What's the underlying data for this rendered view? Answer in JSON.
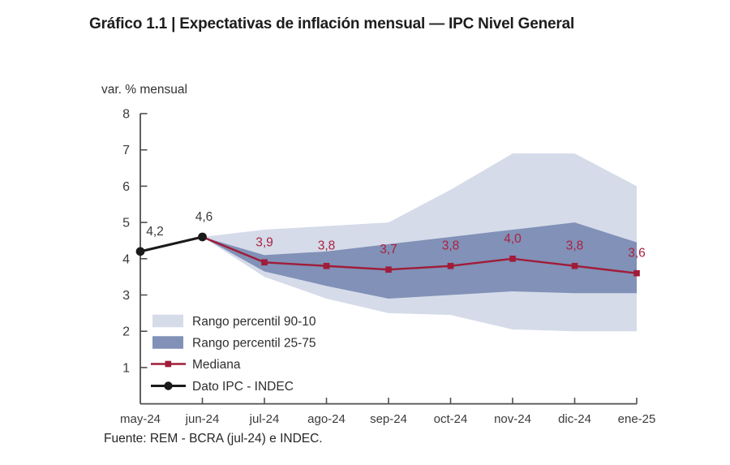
{
  "title": "Gráfico 1.1 | Expectativas de inflación mensual — IPC Nivel General",
  "source": "Fuente: REM - BCRA (jul-24) e INDEC.",
  "axis": {
    "color": "#4f4f4f",
    "tick_label_color": "#3a3a3a"
  },
  "chart_data": {
    "type": "area",
    "title": "Expectativas de inflación mensual — IPC Nivel General",
    "xlabel": "",
    "ylabel": "var. % mensual",
    "x_categories": [
      "may-24",
      "jun-24",
      "jul-24",
      "ago-24",
      "sep-24",
      "oct-24",
      "nov-24",
      "dic-24",
      "ene-25"
    ],
    "ylim": [
      0,
      8
    ],
    "yticks": [
      1,
      2,
      3,
      4,
      5,
      6,
      7,
      8
    ],
    "grid": false,
    "legend_position": "inside-bottom-left",
    "series": [
      {
        "name": "Rango percentil 90-10",
        "type": "band",
        "x_start_index": 1,
        "upper": [
          4.6,
          4.8,
          4.9,
          5.0,
          5.9,
          6.9,
          6.9,
          6.0
        ],
        "lower": [
          4.6,
          3.5,
          2.9,
          2.5,
          2.45,
          2.05,
          2.0,
          2.0
        ],
        "color": "#d5dbe9"
      },
      {
        "name": "Rango percentil 25-75",
        "type": "band",
        "x_start_index": 1,
        "upper": [
          4.6,
          4.1,
          4.2,
          4.4,
          4.6,
          4.8,
          5.0,
          4.45
        ],
        "lower": [
          4.6,
          3.65,
          3.25,
          2.9,
          3.0,
          3.1,
          3.05,
          3.05
        ],
        "color": "#8191b7"
      },
      {
        "name": "Mediana",
        "type": "line",
        "x_start_index": 1,
        "values": [
          4.6,
          3.9,
          3.8,
          3.7,
          3.8,
          4.0,
          3.8,
          3.6
        ],
        "labels": [
          "",
          "3,9",
          "3,8",
          "3,7",
          "3,8",
          "4,0",
          "3,8",
          "3,6"
        ],
        "marker": "square",
        "marker_skip_first": true,
        "color": "#a01c38",
        "label_color": "#ab2140"
      },
      {
        "name": "Dato IPC - INDEC",
        "type": "line",
        "x_start_index": 0,
        "values": [
          4.2,
          4.6
        ],
        "labels": [
          "4,2",
          "4,6"
        ],
        "marker": "circle",
        "marker_skip_first": false,
        "color": "#1a1a1a",
        "label_color": "#3a3a3a"
      }
    ]
  }
}
